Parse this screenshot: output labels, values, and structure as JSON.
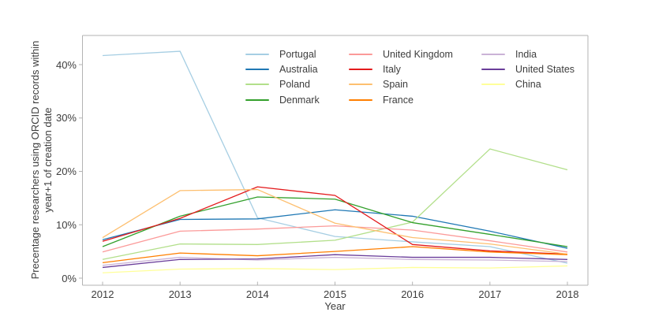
{
  "chart_data": {
    "type": "line",
    "title": "",
    "xlabel": "Year",
    "ylabel": "Precentage researchers using ORCID records within year+1 of creation date",
    "ylabel_lines": [
      "Precentage researchers using ORCID records within",
      "year+1 of creation date"
    ],
    "x": [
      2012,
      2013,
      2014,
      2015,
      2016,
      2017,
      2018
    ],
    "x_tick_labels": [
      "2012",
      "2013",
      "2014",
      "2015",
      "2016",
      "2017",
      "2018"
    ],
    "y_ticks": [
      0,
      10,
      20,
      30,
      40
    ],
    "y_tick_labels": [
      "0%",
      "10%",
      "20%",
      "30%",
      "40%"
    ],
    "ylim": [
      -1.3,
      45.5
    ],
    "grid": false,
    "legend_position": "top-right-inside",
    "legend_columns": [
      4,
      4,
      3
    ],
    "series": [
      {
        "name": "Portugal",
        "color": "#a6cee3",
        "values": [
          41.7,
          42.5,
          11.3,
          7.8,
          6.8,
          5.9,
          2.8
        ]
      },
      {
        "name": "Australia",
        "color": "#1f78b4",
        "values": [
          7.2,
          11.0,
          11.1,
          12.8,
          11.6,
          8.8,
          5.6
        ]
      },
      {
        "name": "Poland",
        "color": "#b2df8a",
        "values": [
          3.5,
          6.4,
          6.3,
          7.1,
          10.5,
          24.2,
          20.3
        ]
      },
      {
        "name": "Denmark",
        "color": "#33a02c",
        "values": [
          5.9,
          11.6,
          15.2,
          14.8,
          10.4,
          8.2,
          5.9
        ]
      },
      {
        "name": "United Kingdom",
        "color": "#fb9a99",
        "values": [
          4.9,
          8.8,
          9.2,
          9.8,
          9.0,
          7.0,
          4.9
        ]
      },
      {
        "name": "Italy",
        "color": "#e31a1c",
        "values": [
          6.9,
          11.2,
          17.1,
          15.5,
          6.3,
          5.1,
          4.5
        ]
      },
      {
        "name": "Spain",
        "color": "#fdbf6f",
        "values": [
          7.6,
          16.4,
          16.6,
          10.3,
          7.6,
          6.4,
          4.5
        ]
      },
      {
        "name": "France",
        "color": "#ff7f00",
        "values": [
          2.9,
          4.7,
          4.2,
          5.0,
          5.9,
          4.9,
          4.4
        ]
      },
      {
        "name": "India",
        "color": "#cab2d6",
        "values": [
          2.4,
          3.9,
          3.4,
          3.9,
          3.5,
          3.4,
          3.1
        ]
      },
      {
        "name": "United States",
        "color": "#6a3d9a",
        "values": [
          2.0,
          3.5,
          3.6,
          4.4,
          3.9,
          3.9,
          3.5
        ]
      },
      {
        "name": "China",
        "color": "#ffff99",
        "values": [
          1.0,
          1.7,
          1.8,
          1.6,
          2.0,
          1.9,
          2.3
        ]
      }
    ],
    "spine_color": "#b3b3b3",
    "text_color": "#3d3d3d"
  }
}
